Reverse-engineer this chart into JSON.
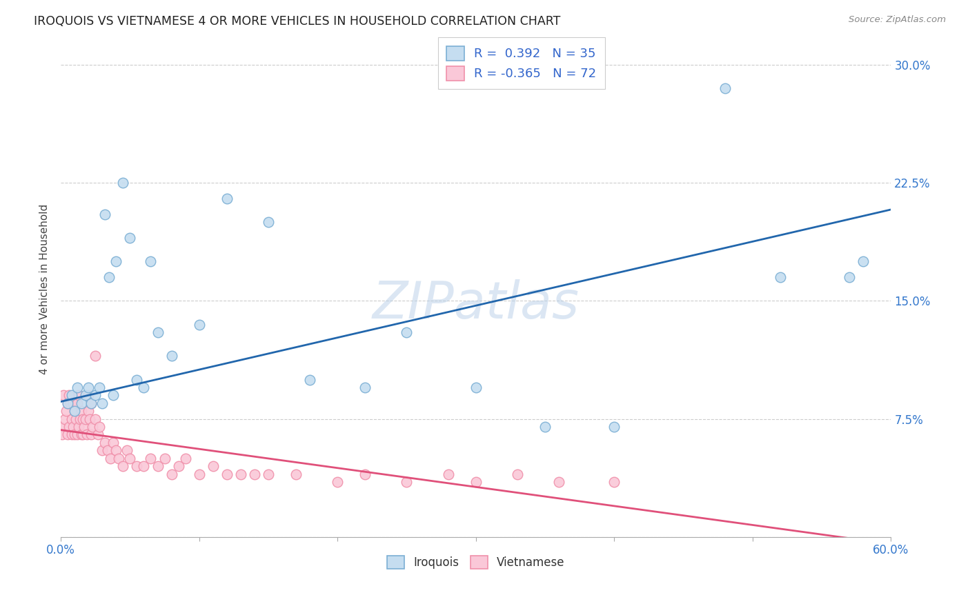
{
  "title": "IROQUOIS VS VIETNAMESE 4 OR MORE VEHICLES IN HOUSEHOLD CORRELATION CHART",
  "source": "Source: ZipAtlas.com",
  "ylabel": "4 or more Vehicles in Household",
  "watermark": "ZIPatlas",
  "iroquois_color": "#7bafd4",
  "iroquois_face": "#c5ddf0",
  "vietnamese_color": "#f090aa",
  "vietnamese_face": "#fac8d8",
  "iroquois_R": 0.392,
  "iroquois_N": 35,
  "vietnamese_R": -0.365,
  "vietnamese_N": 72,
  "iroquois_line_start_x": 0.0,
  "iroquois_line_start_y": 0.086,
  "iroquois_line_end_x": 0.6,
  "iroquois_line_end_y": 0.208,
  "vietnamese_line_start_x": 0.0,
  "vietnamese_line_start_y": 0.068,
  "vietnamese_line_end_x": 0.58,
  "vietnamese_line_end_y": -0.002,
  "xlim": [
    0.0,
    0.6
  ],
  "ylim": [
    0.0,
    0.315
  ],
  "ytick_vals": [
    0.0,
    0.075,
    0.15,
    0.225,
    0.3
  ],
  "ytick_labels": [
    "",
    "7.5%",
    "15.0%",
    "22.5%",
    "30.0%"
  ],
  "xtick_vals": [
    0.0,
    0.1,
    0.2,
    0.3,
    0.4,
    0.5,
    0.6
  ],
  "xtick_labels_show": [
    "0.0%",
    "",
    "",
    "",
    "",
    "",
    "60.0%"
  ],
  "iroquois_x": [
    0.005,
    0.008,
    0.01,
    0.012,
    0.015,
    0.018,
    0.02,
    0.022,
    0.025,
    0.028,
    0.03,
    0.032,
    0.035,
    0.038,
    0.04,
    0.045,
    0.05,
    0.055,
    0.06,
    0.065,
    0.07,
    0.08,
    0.1,
    0.12,
    0.15,
    0.18,
    0.22,
    0.25,
    0.3,
    0.35,
    0.4,
    0.48,
    0.52,
    0.57,
    0.58
  ],
  "iroquois_y": [
    0.085,
    0.09,
    0.08,
    0.095,
    0.085,
    0.09,
    0.095,
    0.085,
    0.09,
    0.095,
    0.085,
    0.205,
    0.165,
    0.09,
    0.175,
    0.225,
    0.19,
    0.1,
    0.095,
    0.175,
    0.13,
    0.115,
    0.135,
    0.215,
    0.2,
    0.1,
    0.095,
    0.13,
    0.095,
    0.07,
    0.07,
    0.285,
    0.165,
    0.165,
    0.175
  ],
  "vietnamese_x": [
    0.0,
    0.001,
    0.002,
    0.003,
    0.004,
    0.005,
    0.005,
    0.006,
    0.006,
    0.007,
    0.008,
    0.008,
    0.009,
    0.009,
    0.01,
    0.01,
    0.011,
    0.012,
    0.012,
    0.013,
    0.013,
    0.014,
    0.015,
    0.015,
    0.016,
    0.016,
    0.017,
    0.018,
    0.019,
    0.02,
    0.02,
    0.021,
    0.022,
    0.022,
    0.023,
    0.025,
    0.025,
    0.027,
    0.028,
    0.03,
    0.032,
    0.034,
    0.036,
    0.038,
    0.04,
    0.042,
    0.045,
    0.048,
    0.05,
    0.055,
    0.06,
    0.065,
    0.07,
    0.075,
    0.08,
    0.085,
    0.09,
    0.1,
    0.11,
    0.12,
    0.13,
    0.14,
    0.15,
    0.17,
    0.2,
    0.22,
    0.25,
    0.28,
    0.3,
    0.33,
    0.36,
    0.4
  ],
  "vietnamese_y": [
    0.07,
    0.065,
    0.09,
    0.075,
    0.08,
    0.085,
    0.065,
    0.07,
    0.09,
    0.085,
    0.075,
    0.065,
    0.07,
    0.085,
    0.065,
    0.08,
    0.075,
    0.065,
    0.085,
    0.07,
    0.09,
    0.075,
    0.065,
    0.08,
    0.075,
    0.065,
    0.07,
    0.075,
    0.065,
    0.08,
    0.09,
    0.075,
    0.085,
    0.065,
    0.07,
    0.115,
    0.075,
    0.065,
    0.07,
    0.055,
    0.06,
    0.055,
    0.05,
    0.06,
    0.055,
    0.05,
    0.045,
    0.055,
    0.05,
    0.045,
    0.045,
    0.05,
    0.045,
    0.05,
    0.04,
    0.045,
    0.05,
    0.04,
    0.045,
    0.04,
    0.04,
    0.04,
    0.04,
    0.04,
    0.035,
    0.04,
    0.035,
    0.04,
    0.035,
    0.04,
    0.035,
    0.035
  ]
}
